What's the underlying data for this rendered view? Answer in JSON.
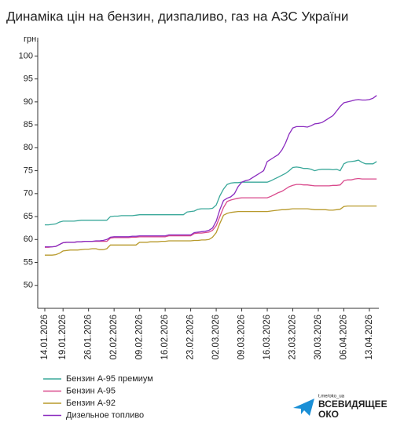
{
  "chart_data": {
    "type": "line",
    "title": "Динаміка цін на бензин, дизпаливо, газ на АЗС України",
    "y_label": "грн.",
    "categories": [
      "14.01.2026",
      null,
      null,
      null,
      null,
      "19.01.2026",
      null,
      null,
      null,
      null,
      null,
      null,
      "26.01.2026",
      null,
      null,
      null,
      null,
      null,
      null,
      "02.02.2026",
      null,
      null,
      null,
      null,
      null,
      null,
      "09.02.2026",
      null,
      null,
      null,
      null,
      null,
      null,
      "16.02.2026",
      null,
      null,
      null,
      null,
      null,
      null,
      "23.02.2026",
      null,
      null,
      null,
      null,
      null,
      null,
      "02.03.2026",
      null,
      null,
      null,
      null,
      null,
      null,
      "09.03.2026",
      null,
      null,
      null,
      null,
      null,
      null,
      "16.03.2026",
      null,
      null,
      null,
      null,
      null,
      null,
      "23.03.2026",
      null,
      null,
      null,
      null,
      null,
      null,
      "30.03.2026",
      null,
      null,
      null,
      null,
      null,
      null,
      "06.04.2026",
      null,
      null,
      null,
      null,
      null,
      null,
      "13.04.2026",
      null,
      null
    ],
    "series": [
      {
        "name": "Бензин А-95 премиум",
        "color": "#3aa89a",
        "values": [
          63.2,
          63.2,
          63.3,
          63.4,
          63.8,
          64.0,
          64.0,
          64.0,
          64.0,
          64.1,
          64.2,
          64.2,
          64.2,
          64.2,
          64.2,
          64.2,
          64.2,
          64.2,
          65.0,
          65.1,
          65.1,
          65.2,
          65.2,
          65.2,
          65.2,
          65.3,
          65.4,
          65.4,
          65.4,
          65.4,
          65.4,
          65.4,
          65.4,
          65.4,
          65.4,
          65.4,
          65.4,
          65.4,
          65.4,
          66.0,
          66.1,
          66.2,
          66.6,
          66.7,
          66.7,
          66.7,
          66.8,
          67.5,
          69.5,
          71.0,
          72.0,
          72.3,
          72.4,
          72.4,
          72.5,
          72.5,
          72.5,
          72.5,
          72.5,
          72.5,
          72.5,
          72.5,
          72.8,
          73.2,
          73.6,
          74.0,
          74.4,
          75.0,
          75.7,
          75.8,
          75.7,
          75.5,
          75.5,
          75.3,
          75.0,
          75.2,
          75.3,
          75.3,
          75.3,
          75.2,
          75.3,
          75.0,
          76.5,
          76.9,
          77.0,
          77.1,
          77.3,
          76.8,
          76.5,
          76.5,
          76.5,
          77.0
        ]
      },
      {
        "name": "Бензин А-95",
        "color": "#d94a8c",
        "values": [
          58.3,
          58.3,
          58.4,
          58.5,
          58.9,
          59.3,
          59.4,
          59.4,
          59.4,
          59.5,
          59.5,
          59.6,
          59.6,
          59.6,
          59.6,
          59.6,
          59.6,
          59.6,
          60.3,
          60.4,
          60.4,
          60.4,
          60.4,
          60.4,
          60.5,
          60.5,
          60.6,
          60.6,
          60.6,
          60.6,
          60.6,
          60.6,
          60.6,
          60.6,
          60.8,
          60.8,
          60.8,
          60.8,
          60.8,
          60.8,
          60.8,
          61.3,
          61.4,
          61.4,
          61.5,
          61.6,
          62.0,
          63.0,
          65.0,
          67.0,
          68.3,
          68.6,
          68.8,
          69.0,
          69.1,
          69.1,
          69.1,
          69.1,
          69.1,
          69.1,
          69.1,
          69.1,
          69.4,
          69.8,
          70.2,
          70.5,
          71.0,
          71.5,
          71.8,
          72.0,
          72.0,
          71.9,
          71.9,
          71.8,
          71.7,
          71.7,
          71.7,
          71.7,
          71.7,
          71.8,
          71.8,
          71.9,
          72.8,
          73.0,
          73.0,
          73.2,
          73.3,
          73.2,
          73.2,
          73.2,
          73.2,
          73.2
        ]
      },
      {
        "name": "Бензин А-92",
        "color": "#b89a2c",
        "values": [
          56.6,
          56.6,
          56.6,
          56.7,
          57.0,
          57.5,
          57.6,
          57.7,
          57.7,
          57.7,
          57.8,
          57.9,
          57.9,
          58.0,
          58.0,
          57.8,
          57.8,
          58.0,
          58.8,
          58.8,
          58.8,
          58.8,
          58.8,
          58.8,
          58.8,
          58.8,
          59.4,
          59.4,
          59.4,
          59.5,
          59.5,
          59.5,
          59.6,
          59.6,
          59.7,
          59.7,
          59.7,
          59.7,
          59.7,
          59.7,
          59.7,
          59.8,
          59.8,
          59.9,
          59.9,
          60.0,
          60.5,
          61.5,
          63.5,
          65.3,
          65.7,
          65.9,
          66.0,
          66.1,
          66.1,
          66.1,
          66.1,
          66.1,
          66.1,
          66.1,
          66.1,
          66.1,
          66.2,
          66.3,
          66.4,
          66.5,
          66.5,
          66.6,
          66.7,
          66.7,
          66.7,
          66.7,
          66.7,
          66.6,
          66.5,
          66.5,
          66.5,
          66.5,
          66.4,
          66.4,
          66.5,
          66.6,
          67.2,
          67.3,
          67.3,
          67.3,
          67.3,
          67.3,
          67.3,
          67.3,
          67.3,
          67.3
        ]
      },
      {
        "name": "Дизельное топливо",
        "color": "#8a2bbf",
        "values": [
          58.4,
          58.4,
          58.4,
          58.5,
          58.9,
          59.3,
          59.4,
          59.4,
          59.4,
          59.5,
          59.5,
          59.6,
          59.6,
          59.6,
          59.7,
          59.7,
          59.8,
          60.0,
          60.5,
          60.6,
          60.6,
          60.6,
          60.6,
          60.6,
          60.7,
          60.7,
          60.8,
          60.8,
          60.8,
          60.8,
          60.8,
          60.8,
          60.8,
          60.8,
          61.0,
          61.0,
          61.0,
          61.0,
          61.0,
          61.0,
          61.0,
          61.5,
          61.6,
          61.7,
          61.8,
          62.0,
          62.5,
          64.0,
          66.5,
          68.5,
          69.0,
          69.3,
          70.0,
          71.5,
          72.5,
          72.8,
          73.0,
          73.5,
          74.0,
          74.5,
          75.0,
          77.0,
          77.5,
          78.0,
          78.5,
          79.5,
          81.0,
          83.0,
          84.3,
          84.6,
          84.6,
          84.6,
          84.5,
          84.8,
          85.2,
          85.3,
          85.5,
          86.0,
          86.5,
          87.0,
          88.0,
          89.0,
          89.8,
          90.0,
          90.2,
          90.4,
          90.5,
          90.4,
          90.4,
          90.5,
          90.8,
          91.4
        ]
      }
    ],
    "ylim": [
      45,
      104
    ],
    "yticks": [
      50,
      55,
      60,
      65,
      70,
      75,
      80,
      85,
      90,
      95,
      100
    ],
    "grid": false,
    "legend": "bottom-left"
  },
  "branding": {
    "url": "t.me/oko_ua",
    "name_line1": "ВСЕВИДЯЩЕЕ",
    "name_line2": "ОКО"
  }
}
